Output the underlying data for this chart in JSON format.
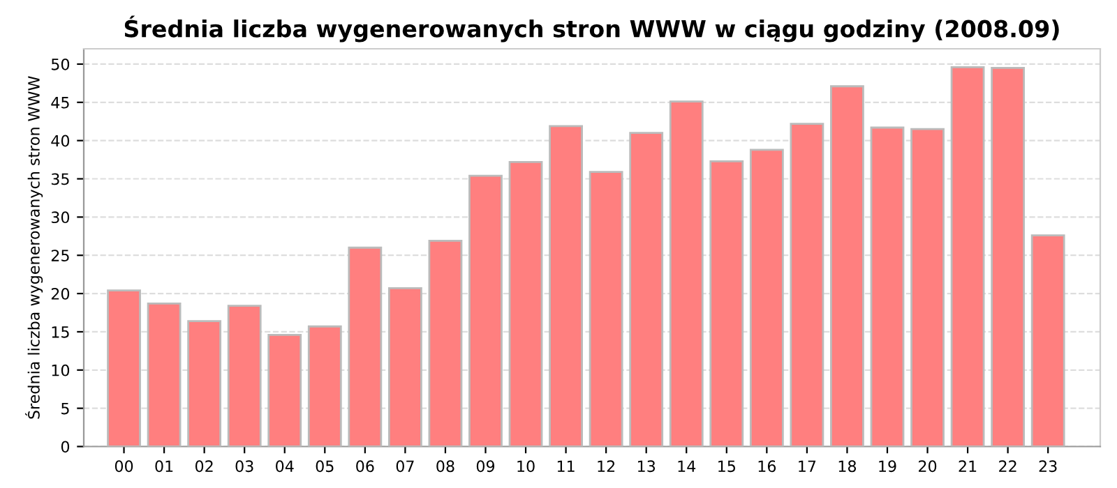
{
  "chart_data": {
    "type": "bar",
    "title": "Średnia liczba wygenerowanych stron WWW w ciągu godziny (2008.09)",
    "ylabel": "Średnia liczba wygenerowanych stron WWW",
    "categories": [
      "00",
      "01",
      "02",
      "03",
      "04",
      "05",
      "06",
      "07",
      "08",
      "09",
      "10",
      "11",
      "12",
      "13",
      "14",
      "15",
      "16",
      "17",
      "18",
      "19",
      "20",
      "21",
      "22",
      "23"
    ],
    "series": [
      {
        "color": "#ff7f7f",
        "values": [
          20.4,
          18.7,
          16.4,
          18.4,
          14.6,
          15.7,
          26.0,
          20.7,
          26.9,
          35.4,
          37.2,
          41.9,
          35.9,
          41.0,
          45.1,
          37.3,
          38.8,
          42.2,
          47.1,
          41.7,
          41.5,
          49.6,
          49.5,
          27.6
        ]
      }
    ],
    "ylim": [
      0,
      52
    ],
    "yticks": [
      0,
      5,
      10,
      15,
      20,
      25,
      30,
      35,
      40,
      45,
      50
    ],
    "grid": "y",
    "legend": false
  }
}
